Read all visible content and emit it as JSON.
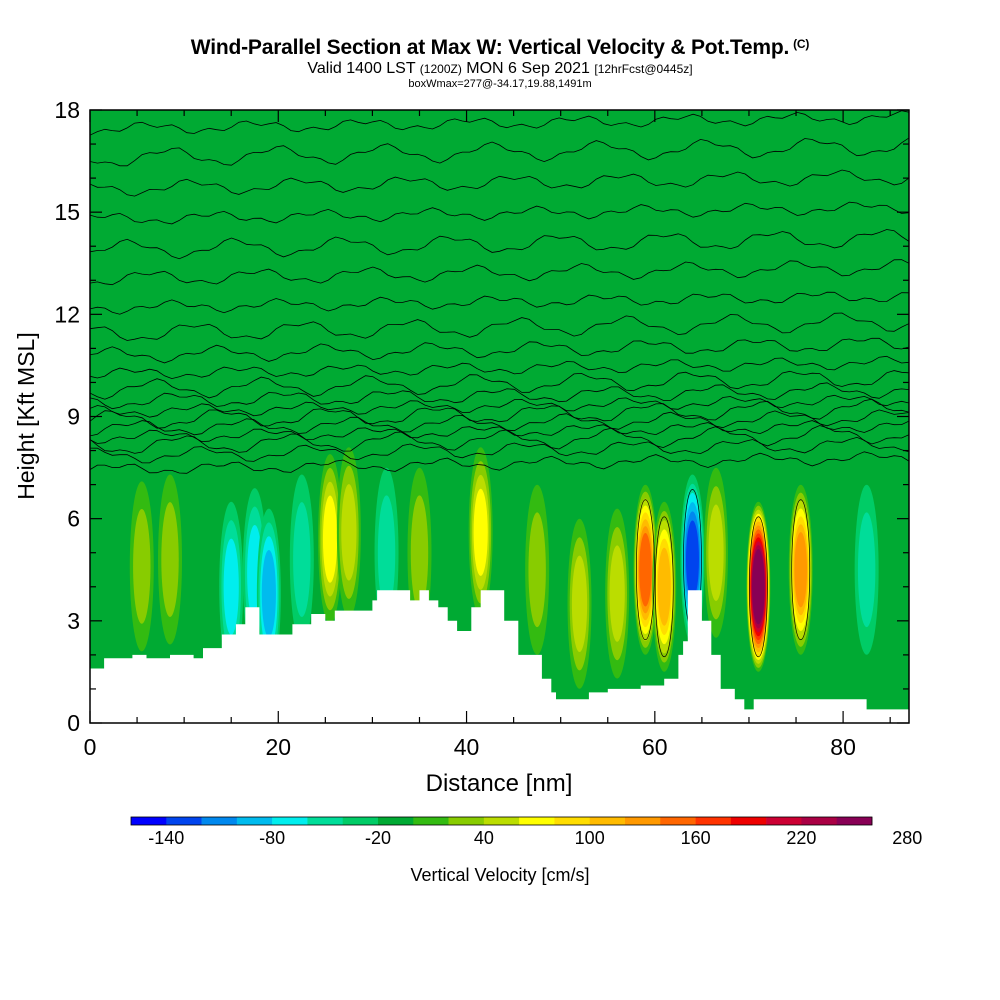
{
  "header": {
    "title": "Wind-Parallel Section at Max W: Vertical Velocity & Pot.Temp.",
    "copyright": "(C)",
    "valid_main": "Valid 1400 LST",
    "valid_z": "(1200Z)",
    "valid_date": "MON 6 Sep 2021",
    "forecast": "[12hrFcst@0445z]",
    "box": "boxWmax=277@-34.17,19.88,1491m"
  },
  "chart_data": {
    "type": "heatmap",
    "xlabel": "Distance [nm]",
    "ylabel": "Height [Kft MSL]",
    "xlim": [
      0,
      87
    ],
    "ylim": [
      0,
      18
    ],
    "xticks": [
      0,
      20,
      40,
      60,
      80
    ],
    "yticks": [
      0,
      3,
      6,
      9,
      12,
      15,
      18
    ],
    "background_value_cm_s": 0,
    "terrain_kft": [
      [
        0,
        1.6
      ],
      [
        1.5,
        1.9
      ],
      [
        4.5,
        2.0
      ],
      [
        6,
        1.9
      ],
      [
        8.5,
        2.0
      ],
      [
        11,
        1.9
      ],
      [
        12,
        2.2
      ],
      [
        14,
        2.6
      ],
      [
        15.5,
        2.9
      ],
      [
        16.5,
        3.4
      ],
      [
        18,
        2.6
      ],
      [
        21.5,
        2.9
      ],
      [
        23.5,
        3.2
      ],
      [
        25,
        3.0
      ],
      [
        26,
        3.3
      ],
      [
        30,
        3.6
      ],
      [
        30.5,
        3.9
      ],
      [
        34,
        3.6
      ],
      [
        35,
        3.9
      ],
      [
        36,
        3.6
      ],
      [
        37,
        3.4
      ],
      [
        38,
        3.0
      ],
      [
        39,
        2.7
      ],
      [
        40.5,
        3.4
      ],
      [
        41.5,
        3.9
      ],
      [
        44,
        3.0
      ],
      [
        45.5,
        2.0
      ],
      [
        48,
        1.3
      ],
      [
        49,
        0.9
      ],
      [
        49.5,
        0.7
      ],
      [
        53,
        0.9
      ],
      [
        55,
        1.0
      ],
      [
        58.5,
        1.1
      ],
      [
        61,
        1.3
      ],
      [
        62.5,
        2.0
      ],
      [
        63,
        2.4
      ],
      [
        63.5,
        3.9
      ],
      [
        65,
        3.0
      ],
      [
        66,
        2.0
      ],
      [
        67,
        1.0
      ],
      [
        68.5,
        0.7
      ],
      [
        69.5,
        0.4
      ],
      [
        70.5,
        0.7
      ],
      [
        75.5,
        0.7
      ],
      [
        80,
        0.7
      ],
      [
        82.5,
        0.4
      ],
      [
        87,
        0.4
      ]
    ],
    "updrafts": [
      {
        "x": 5.5,
        "z": 4.6,
        "w": 30
      },
      {
        "x": 8.5,
        "z": 4.8,
        "w": 40
      },
      {
        "x": 15.0,
        "z": 4.0,
        "w": -60
      },
      {
        "x": 17.5,
        "z": 4.4,
        "w": -50
      },
      {
        "x": 19.0,
        "z": 3.8,
        "w": -80
      },
      {
        "x": 22.5,
        "z": 4.8,
        "w": -40
      },
      {
        "x": 25.5,
        "z": 5.4,
        "w": 80
      },
      {
        "x": 27.5,
        "z": 5.6,
        "w": 60
      },
      {
        "x": 31.5,
        "z": 5.0,
        "w": -30
      },
      {
        "x": 35.0,
        "z": 5.0,
        "w": 40
      },
      {
        "x": 41.5,
        "z": 5.6,
        "w": 80
      },
      {
        "x": 47.5,
        "z": 4.5,
        "w": 40
      },
      {
        "x": 52.0,
        "z": 3.5,
        "w": 50
      },
      {
        "x": 56.0,
        "z": 3.8,
        "w": 60
      },
      {
        "x": 59.0,
        "z": 4.5,
        "w": 160
      },
      {
        "x": 61.0,
        "z": 4.0,
        "w": 120
      },
      {
        "x": 64.0,
        "z": 4.8,
        "w": -110
      },
      {
        "x": 66.5,
        "z": 5.0,
        "w": 50
      },
      {
        "x": 71.0,
        "z": 4.0,
        "w": 270
      },
      {
        "x": 75.5,
        "z": 4.5,
        "w": 140
      },
      {
        "x": 82.5,
        "z": 4.5,
        "w": -30
      }
    ],
    "theta_contour_heights_kft": [
      7.6,
      8.0,
      8.3,
      8.55,
      8.8,
      9.05,
      9.3,
      9.6,
      9.95,
      10.4,
      10.95,
      11.6,
      12.35,
      13.2,
      14.05,
      14.95,
      15.85,
      16.75,
      17.6
    ],
    "colorbar": {
      "label": "Vertical Velocity [cm/s]",
      "ticks": [
        "-140",
        "-80",
        "-20",
        "40",
        "100",
        "160",
        "220",
        "280"
      ],
      "colors": [
        "#0000ff",
        "#0044ee",
        "#0088ee",
        "#00bbee",
        "#00eeee",
        "#00dd99",
        "#00cc66",
        "#00aa33",
        "#33bb11",
        "#88cc00",
        "#bbdd00",
        "#ffff00",
        "#ffdd00",
        "#ffbb00",
        "#ff9900",
        "#ff6600",
        "#ff3300",
        "#ee0000",
        "#cc0033",
        "#aa0044",
        "#880055"
      ]
    }
  }
}
